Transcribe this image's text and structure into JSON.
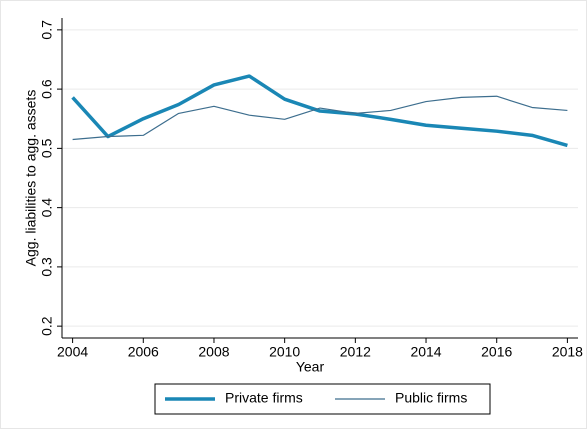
{
  "chart_data": {
    "type": "line",
    "xlabel": "Year",
    "ylabel": "Agg. liabilities to agg. assets",
    "x": [
      2004,
      2005,
      2006,
      2007,
      2008,
      2009,
      2010,
      2011,
      2012,
      2013,
      2014,
      2015,
      2016,
      2017,
      2018
    ],
    "series": [
      {
        "name": "Private firms",
        "color": "#1a87b5",
        "values": [
          0.586,
          0.52,
          0.55,
          0.574,
          0.607,
          0.622,
          0.583,
          0.563,
          0.558,
          0.549,
          0.539,
          0.534,
          0.529,
          0.522,
          0.505
        ]
      },
      {
        "name": "Public firms",
        "color": "#3d6e8e",
        "values": [
          0.515,
          0.52,
          0.522,
          0.559,
          0.571,
          0.556,
          0.549,
          0.568,
          0.559,
          0.564,
          0.579,
          0.586,
          0.588,
          0.569,
          0.564
        ]
      }
    ],
    "xlim": [
      2003.7,
      2018.3
    ],
    "xticks": [
      2004,
      2006,
      2008,
      2010,
      2012,
      2014,
      2016,
      2018
    ],
    "ylim": [
      0.18,
      0.72
    ],
    "yticks": [
      0.2,
      0.3,
      0.4,
      0.5,
      0.6,
      0.7
    ],
    "grid": true,
    "legend": "bottom"
  }
}
